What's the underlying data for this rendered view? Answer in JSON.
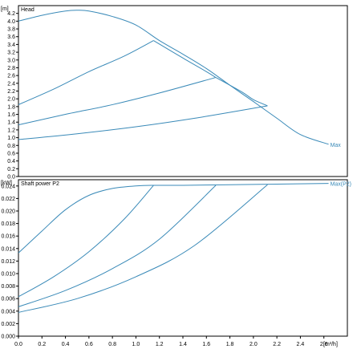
{
  "chart_data": [
    {
      "type": "line",
      "title": "Head",
      "yunit": "[m]",
      "ylim": [
        0,
        4.4
      ],
      "yticks": [
        "0.0",
        "0.2",
        "0.4",
        "0.6",
        "0.8",
        "1.0",
        "1.2",
        "1.4",
        "1.6",
        "1.8",
        "2.0",
        "2.2",
        "2.4",
        "2.6",
        "2.8",
        "3.0",
        "3.2",
        "3.4",
        "3.6",
        "3.8",
        "4.0",
        "4.2"
      ],
      "xlim": [
        0,
        2.8
      ],
      "grid": false,
      "color": "#3a8ab8",
      "end_label": "Max",
      "series": [
        {
          "x": [
            0,
            0.2,
            0.4,
            0.5,
            0.6,
            0.8,
            1.0,
            1.2,
            1.4,
            1.6,
            1.8,
            2.0,
            2.2,
            2.4,
            2.64
          ],
          "y": [
            4.0,
            4.15,
            4.26,
            4.28,
            4.26,
            4.12,
            3.9,
            3.5,
            3.15,
            2.78,
            2.35,
            1.93,
            1.5,
            1.08,
            0.83
          ]
        },
        {
          "x": [
            0,
            0.3,
            0.6,
            0.9,
            1.15
          ],
          "y": [
            1.85,
            2.25,
            2.7,
            3.1,
            3.5
          ]
        },
        {
          "x": [
            0,
            0.4,
            0.8,
            1.2,
            1.68
          ],
          "y": [
            1.33,
            1.6,
            1.85,
            2.15,
            2.55
          ]
        },
        {
          "x": [
            0,
            0.5,
            1.0,
            1.5,
            2.12
          ],
          "y": [
            0.95,
            1.1,
            1.28,
            1.5,
            1.82
          ]
        },
        {
          "x": [
            1.15,
            1.4,
            1.6,
            1.68
          ],
          "y": [
            3.5,
            3.05,
            2.7,
            2.55
          ]
        },
        {
          "x": [
            1.68,
            1.9,
            2.0,
            2.12
          ],
          "y": [
            2.55,
            2.18,
            1.98,
            1.82
          ]
        }
      ]
    },
    {
      "type": "line",
      "title": "Shaft power P2",
      "yunit": "[kW]",
      "ylim": [
        0,
        0.025
      ],
      "yticks": [
        "0.000",
        "0.002",
        "0.004",
        "0.006",
        "0.008",
        "0.010",
        "0.012",
        "0.014",
        "0.016",
        "0.018",
        "0.020",
        "0.022",
        "0.024"
      ],
      "xlim": [
        0,
        2.8
      ],
      "xticks": [
        "0.0",
        "0.2",
        "0.4",
        "0.6",
        "0.8",
        "1.0",
        "1.2",
        "1.4",
        "1.6",
        "1.8",
        "2.0",
        "2.2",
        "2.4",
        "2.6"
      ],
      "xunit": "[m³/h]",
      "grid": false,
      "color": "#3a8ab8",
      "end_label": "Max(P2)",
      "series": [
        {
          "x": [
            0,
            0.2,
            0.4,
            0.6,
            0.8,
            1.0,
            1.15,
            1.4,
            1.8,
            2.2,
            2.64
          ],
          "y": [
            0.0133,
            0.0168,
            0.0202,
            0.0225,
            0.0236,
            0.024,
            0.0241,
            0.0241,
            0.0242,
            0.0243,
            0.0244
          ]
        },
        {
          "x": [
            0,
            0.3,
            0.6,
            0.9,
            1.15
          ],
          "y": [
            0.0063,
            0.0095,
            0.0135,
            0.0187,
            0.0241
          ]
        },
        {
          "x": [
            0,
            0.4,
            0.8,
            1.2,
            1.68
          ],
          "y": [
            0.0047,
            0.0073,
            0.0108,
            0.0155,
            0.0241
          ]
        },
        {
          "x": [
            0,
            0.5,
            1.0,
            1.5,
            2.12
          ],
          "y": [
            0.0038,
            0.006,
            0.0095,
            0.0145,
            0.0242
          ]
        }
      ]
    }
  ]
}
